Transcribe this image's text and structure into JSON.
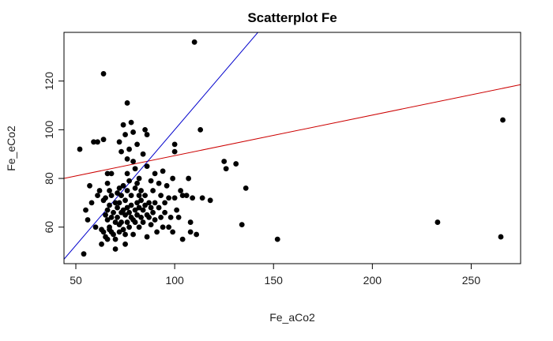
{
  "chart_data": {
    "type": "scatter",
    "title": "Scatterplot Fe",
    "xlabel": "Fe_aCo2",
    "ylabel": "Fe_eCo2",
    "xlim": [
      44,
      275
    ],
    "ylim": [
      45,
      140
    ],
    "xticks": [
      50,
      100,
      150,
      200,
      250
    ],
    "yticks": [
      60,
      80,
      100,
      120
    ],
    "grid": false,
    "lines": [
      {
        "color": "#cc0000",
        "intercept": 72.7,
        "slope": 0.1666
      },
      {
        "color": "#0000cc",
        "intercept": 5.0,
        "slope": 0.95
      }
    ],
    "points": [
      [
        52,
        92
      ],
      [
        54,
        49
      ],
      [
        55,
        67
      ],
      [
        56,
        63
      ],
      [
        57,
        77
      ],
      [
        58,
        70
      ],
      [
        59,
        95
      ],
      [
        60,
        60
      ],
      [
        61,
        95
      ],
      [
        61,
        73
      ],
      [
        62,
        75
      ],
      [
        63,
        59
      ],
      [
        63,
        53
      ],
      [
        64,
        123
      ],
      [
        64,
        96
      ],
      [
        64,
        58
      ],
      [
        64,
        71
      ],
      [
        65,
        72
      ],
      [
        65,
        65
      ],
      [
        65,
        56
      ],
      [
        66,
        82
      ],
      [
        66,
        78
      ],
      [
        66,
        67
      ],
      [
        66,
        63
      ],
      [
        66,
        55
      ],
      [
        67,
        75
      ],
      [
        67,
        69
      ],
      [
        67,
        60
      ],
      [
        67,
        59
      ],
      [
        68,
        82
      ],
      [
        68,
        73
      ],
      [
        68,
        64
      ],
      [
        68,
        58
      ],
      [
        69,
        66
      ],
      [
        69,
        57
      ],
      [
        70,
        70
      ],
      [
        70,
        62
      ],
      [
        70,
        55
      ],
      [
        70,
        51
      ],
      [
        71,
        74
      ],
      [
        71,
        68
      ],
      [
        71,
        64
      ],
      [
        72,
        95
      ],
      [
        72,
        76
      ],
      [
        72,
        70
      ],
      [
        72,
        61
      ],
      [
        72,
        58
      ],
      [
        73,
        91
      ],
      [
        73,
        73
      ],
      [
        73,
        66
      ],
      [
        73,
        62
      ],
      [
        74,
        102
      ],
      [
        74,
        77
      ],
      [
        74,
        67
      ],
      [
        74,
        59
      ],
      [
        75,
        98
      ],
      [
        75,
        71
      ],
      [
        75,
        65
      ],
      [
        75,
        57
      ],
      [
        75,
        53
      ],
      [
        76,
        111
      ],
      [
        76,
        88
      ],
      [
        76,
        82
      ],
      [
        76,
        75
      ],
      [
        76,
        68
      ],
      [
        76,
        62
      ],
      [
        77,
        92
      ],
      [
        77,
        79
      ],
      [
        77,
        66
      ],
      [
        77,
        60
      ],
      [
        78,
        103
      ],
      [
        78,
        73
      ],
      [
        78,
        69
      ],
      [
        78,
        64
      ],
      [
        79,
        99
      ],
      [
        79,
        87
      ],
      [
        79,
        63
      ],
      [
        79,
        57
      ],
      [
        80,
        84
      ],
      [
        80,
        76
      ],
      [
        80,
        67
      ],
      [
        80,
        62
      ],
      [
        81,
        94
      ],
      [
        81,
        78
      ],
      [
        81,
        70
      ],
      [
        81,
        65
      ],
      [
        82,
        80
      ],
      [
        82,
        73
      ],
      [
        82,
        68
      ],
      [
        82,
        60
      ],
      [
        83,
        75
      ],
      [
        83,
        71
      ],
      [
        83,
        64
      ],
      [
        84,
        90
      ],
      [
        84,
        67
      ],
      [
        84,
        62
      ],
      [
        85,
        100
      ],
      [
        85,
        73
      ],
      [
        85,
        69
      ],
      [
        86,
        98
      ],
      [
        86,
        85
      ],
      [
        86,
        65
      ],
      [
        86,
        56
      ],
      [
        87,
        70
      ],
      [
        87,
        64
      ],
      [
        88,
        79
      ],
      [
        88,
        68
      ],
      [
        88,
        61
      ],
      [
        89,
        75
      ],
      [
        89,
        66
      ],
      [
        90,
        82
      ],
      [
        90,
        70
      ],
      [
        90,
        63
      ],
      [
        91,
        58
      ],
      [
        92,
        78
      ],
      [
        92,
        68
      ],
      [
        93,
        73
      ],
      [
        93,
        64
      ],
      [
        94,
        83
      ],
      [
        94,
        60
      ],
      [
        95,
        70
      ],
      [
        95,
        66
      ],
      [
        96,
        77
      ],
      [
        97,
        72
      ],
      [
        97,
        60
      ],
      [
        98,
        64
      ],
      [
        99,
        80
      ],
      [
        99,
        58
      ],
      [
        100,
        94
      ],
      [
        100,
        91
      ],
      [
        100,
        72
      ],
      [
        101,
        67
      ],
      [
        102,
        64
      ],
      [
        103,
        75
      ],
      [
        104,
        73
      ],
      [
        104,
        55
      ],
      [
        106,
        73
      ],
      [
        107,
        80
      ],
      [
        108,
        62
      ],
      [
        108,
        58
      ],
      [
        109,
        72
      ],
      [
        110,
        136
      ],
      [
        111,
        57
      ],
      [
        113,
        100
      ],
      [
        114,
        72
      ],
      [
        118,
        71
      ],
      [
        125,
        87
      ],
      [
        126,
        84
      ],
      [
        131,
        86
      ],
      [
        134,
        61
      ],
      [
        136,
        76
      ],
      [
        152,
        55
      ],
      [
        233,
        62
      ],
      [
        265,
        56
      ],
      [
        266,
        104
      ]
    ]
  }
}
